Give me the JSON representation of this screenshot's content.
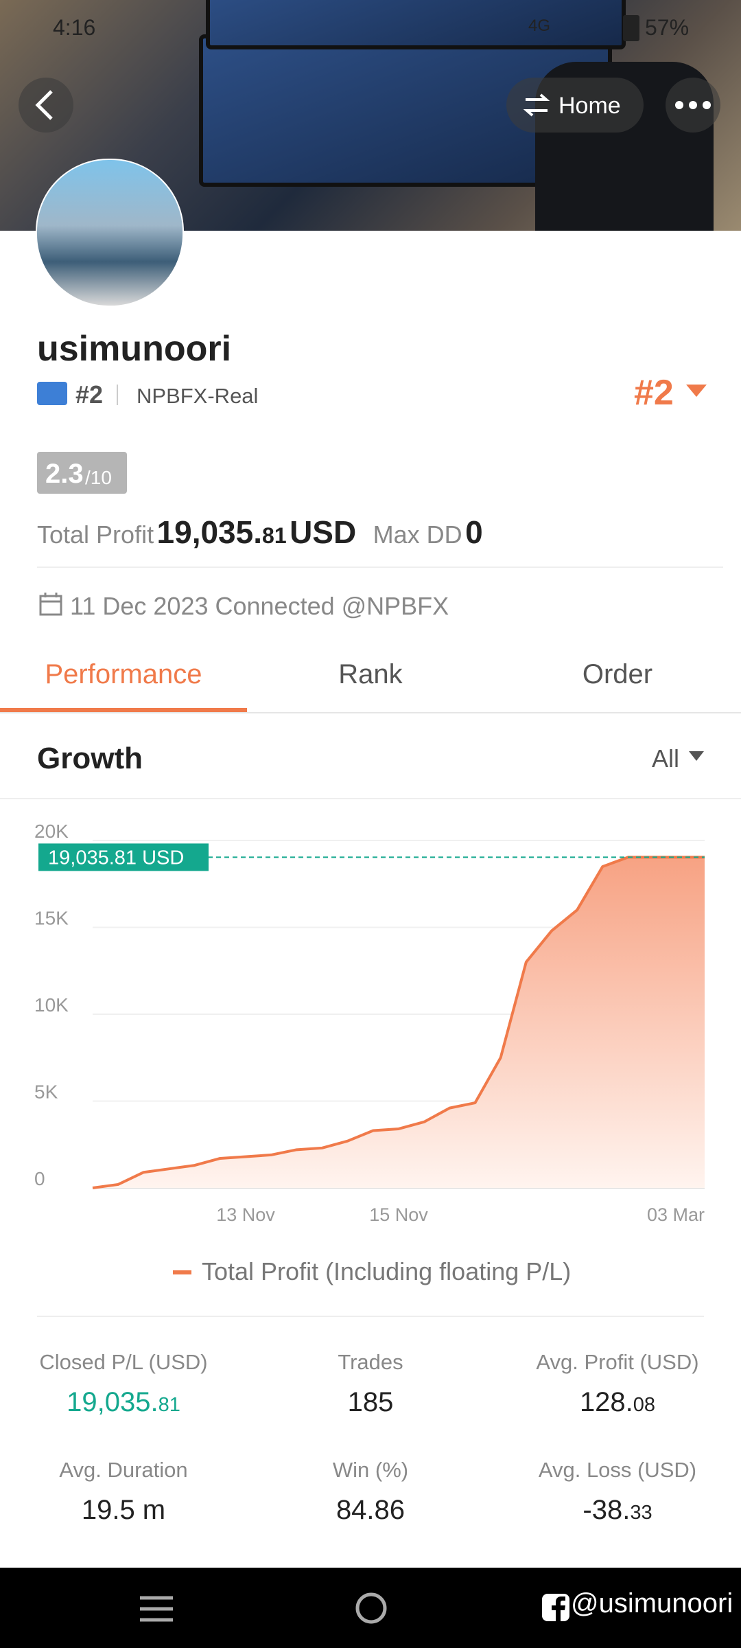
{
  "status_bar": {
    "time": "4:16",
    "network": "4G",
    "battery": "57%"
  },
  "header": {
    "home_button": "Home"
  },
  "profile": {
    "username": "usimunoori",
    "rank": "#2",
    "server": "NPBFX-Real",
    "rank_badge": "#2",
    "score": "2.3",
    "score_max": "/10",
    "total_profit_label": "Total Profit",
    "total_profit_int": "19,035.",
    "total_profit_dec": "81",
    "total_profit_unit": "USD",
    "max_dd_label": "Max DD",
    "max_dd": "0",
    "connected": "11 Dec 2023 Connected @NPBFX"
  },
  "tabs": [
    "Performance",
    "Rank",
    "Order"
  ],
  "growth": {
    "title": "Growth",
    "filter": "All"
  },
  "chart_data": {
    "type": "area",
    "categories": [
      null,
      null,
      null,
      null,
      null,
      null,
      "13 Nov",
      null,
      null,
      null,
      null,
      null,
      "15 Nov",
      null,
      null,
      null,
      null,
      null,
      null,
      null,
      null,
      null,
      null,
      null,
      "03 Mar"
    ],
    "series": [
      {
        "name": "Total Profit (Including floating P/L)",
        "color": "#f07a4a",
        "values": [
          0,
          200,
          900,
          1100,
          1300,
          1700,
          1800,
          1900,
          2200,
          2300,
          2700,
          3300,
          3400,
          3800,
          4600,
          4900,
          7500,
          13000,
          14800,
          16000,
          18500,
          19035,
          19035,
          19035,
          19035
        ]
      }
    ],
    "ylim": [
      0,
      20000
    ],
    "yticks": [
      0,
      {
        "value": 5000,
        "label": "5K"
      },
      {
        "value": 10000,
        "label": "10K"
      },
      {
        "value": 15000,
        "label": "15K"
      },
      {
        "value": 20000,
        "label": "20K"
      }
    ],
    "grid": true,
    "reference_line": {
      "value": 19035.81,
      "label": "19,035.81 USD",
      "color": "#14a88e"
    }
  },
  "stats": [
    {
      "label": "Closed P/L (USD)",
      "value": "19,035.",
      "decimals": "81",
      "color": "#14a88e"
    },
    {
      "label": "Trades",
      "value": "185"
    },
    {
      "label": "Avg. Profit (USD)",
      "value": "128.",
      "decimals": "08"
    },
    {
      "label": "Avg. Duration",
      "value": "19.5 m"
    },
    {
      "label": "Win (%)",
      "value": "84.86"
    },
    {
      "label": "Avg. Loss (USD)",
      "value": "-38.",
      "decimals": "33"
    }
  ],
  "watermark": "@usimunoori"
}
